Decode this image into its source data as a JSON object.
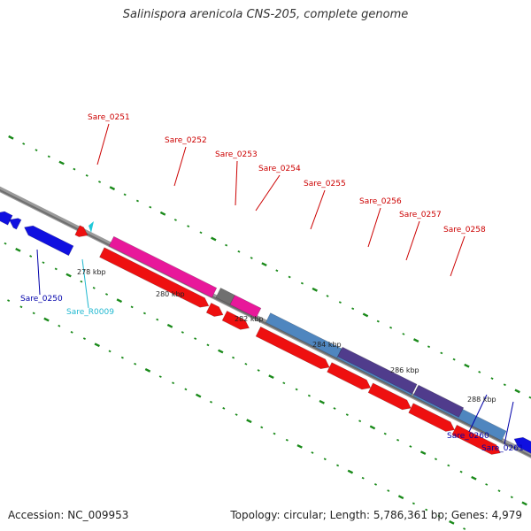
{
  "title": "Salinispora arenicola CNS-205, complete genome",
  "footer": {
    "accession": "Accession: NC_009953",
    "topology": "Topology: circular; Length: 5,786,361 bp; Genes: 4,979"
  },
  "colors": {
    "backbone": "#8a8a8a",
    "reverse_gene": "#1010e0",
    "forward_gene": "#ee1010",
    "pink_feature": "#e8189a",
    "steelblue_feature": "#4f86bf",
    "purple_feature": "#503c8c",
    "gray_feature": "#707070",
    "rna_gene": "#20c8d8",
    "tick_green": "#1a8a1a",
    "label_forward": "#cc0000",
    "label_reverse": "#0000aa",
    "label_rna": "#20b8d0"
  },
  "scale_labels": [
    "278 kbp",
    "280 kbp",
    "282 kbp",
    "284 kbp",
    "286 kbp",
    "288 kbp"
  ],
  "gene_labels": [
    {
      "text": "Sare_0251",
      "type": "forward"
    },
    {
      "text": "Sare_0252",
      "type": "forward"
    },
    {
      "text": "Sare_0253",
      "type": "forward"
    },
    {
      "text": "Sare_0254",
      "type": "forward"
    },
    {
      "text": "Sare_0255",
      "type": "forward"
    },
    {
      "text": "Sare_0256",
      "type": "forward"
    },
    {
      "text": "Sare_0257",
      "type": "forward"
    },
    {
      "text": "Sare_0258",
      "type": "forward"
    },
    {
      "text": "Sare_0250",
      "type": "reverse"
    },
    {
      "text": "Sare_R0009",
      "type": "rna"
    },
    {
      "text": "Sare_0260",
      "type": "reverse"
    },
    {
      "text": "Sare_0261",
      "type": "reverse"
    }
  ]
}
